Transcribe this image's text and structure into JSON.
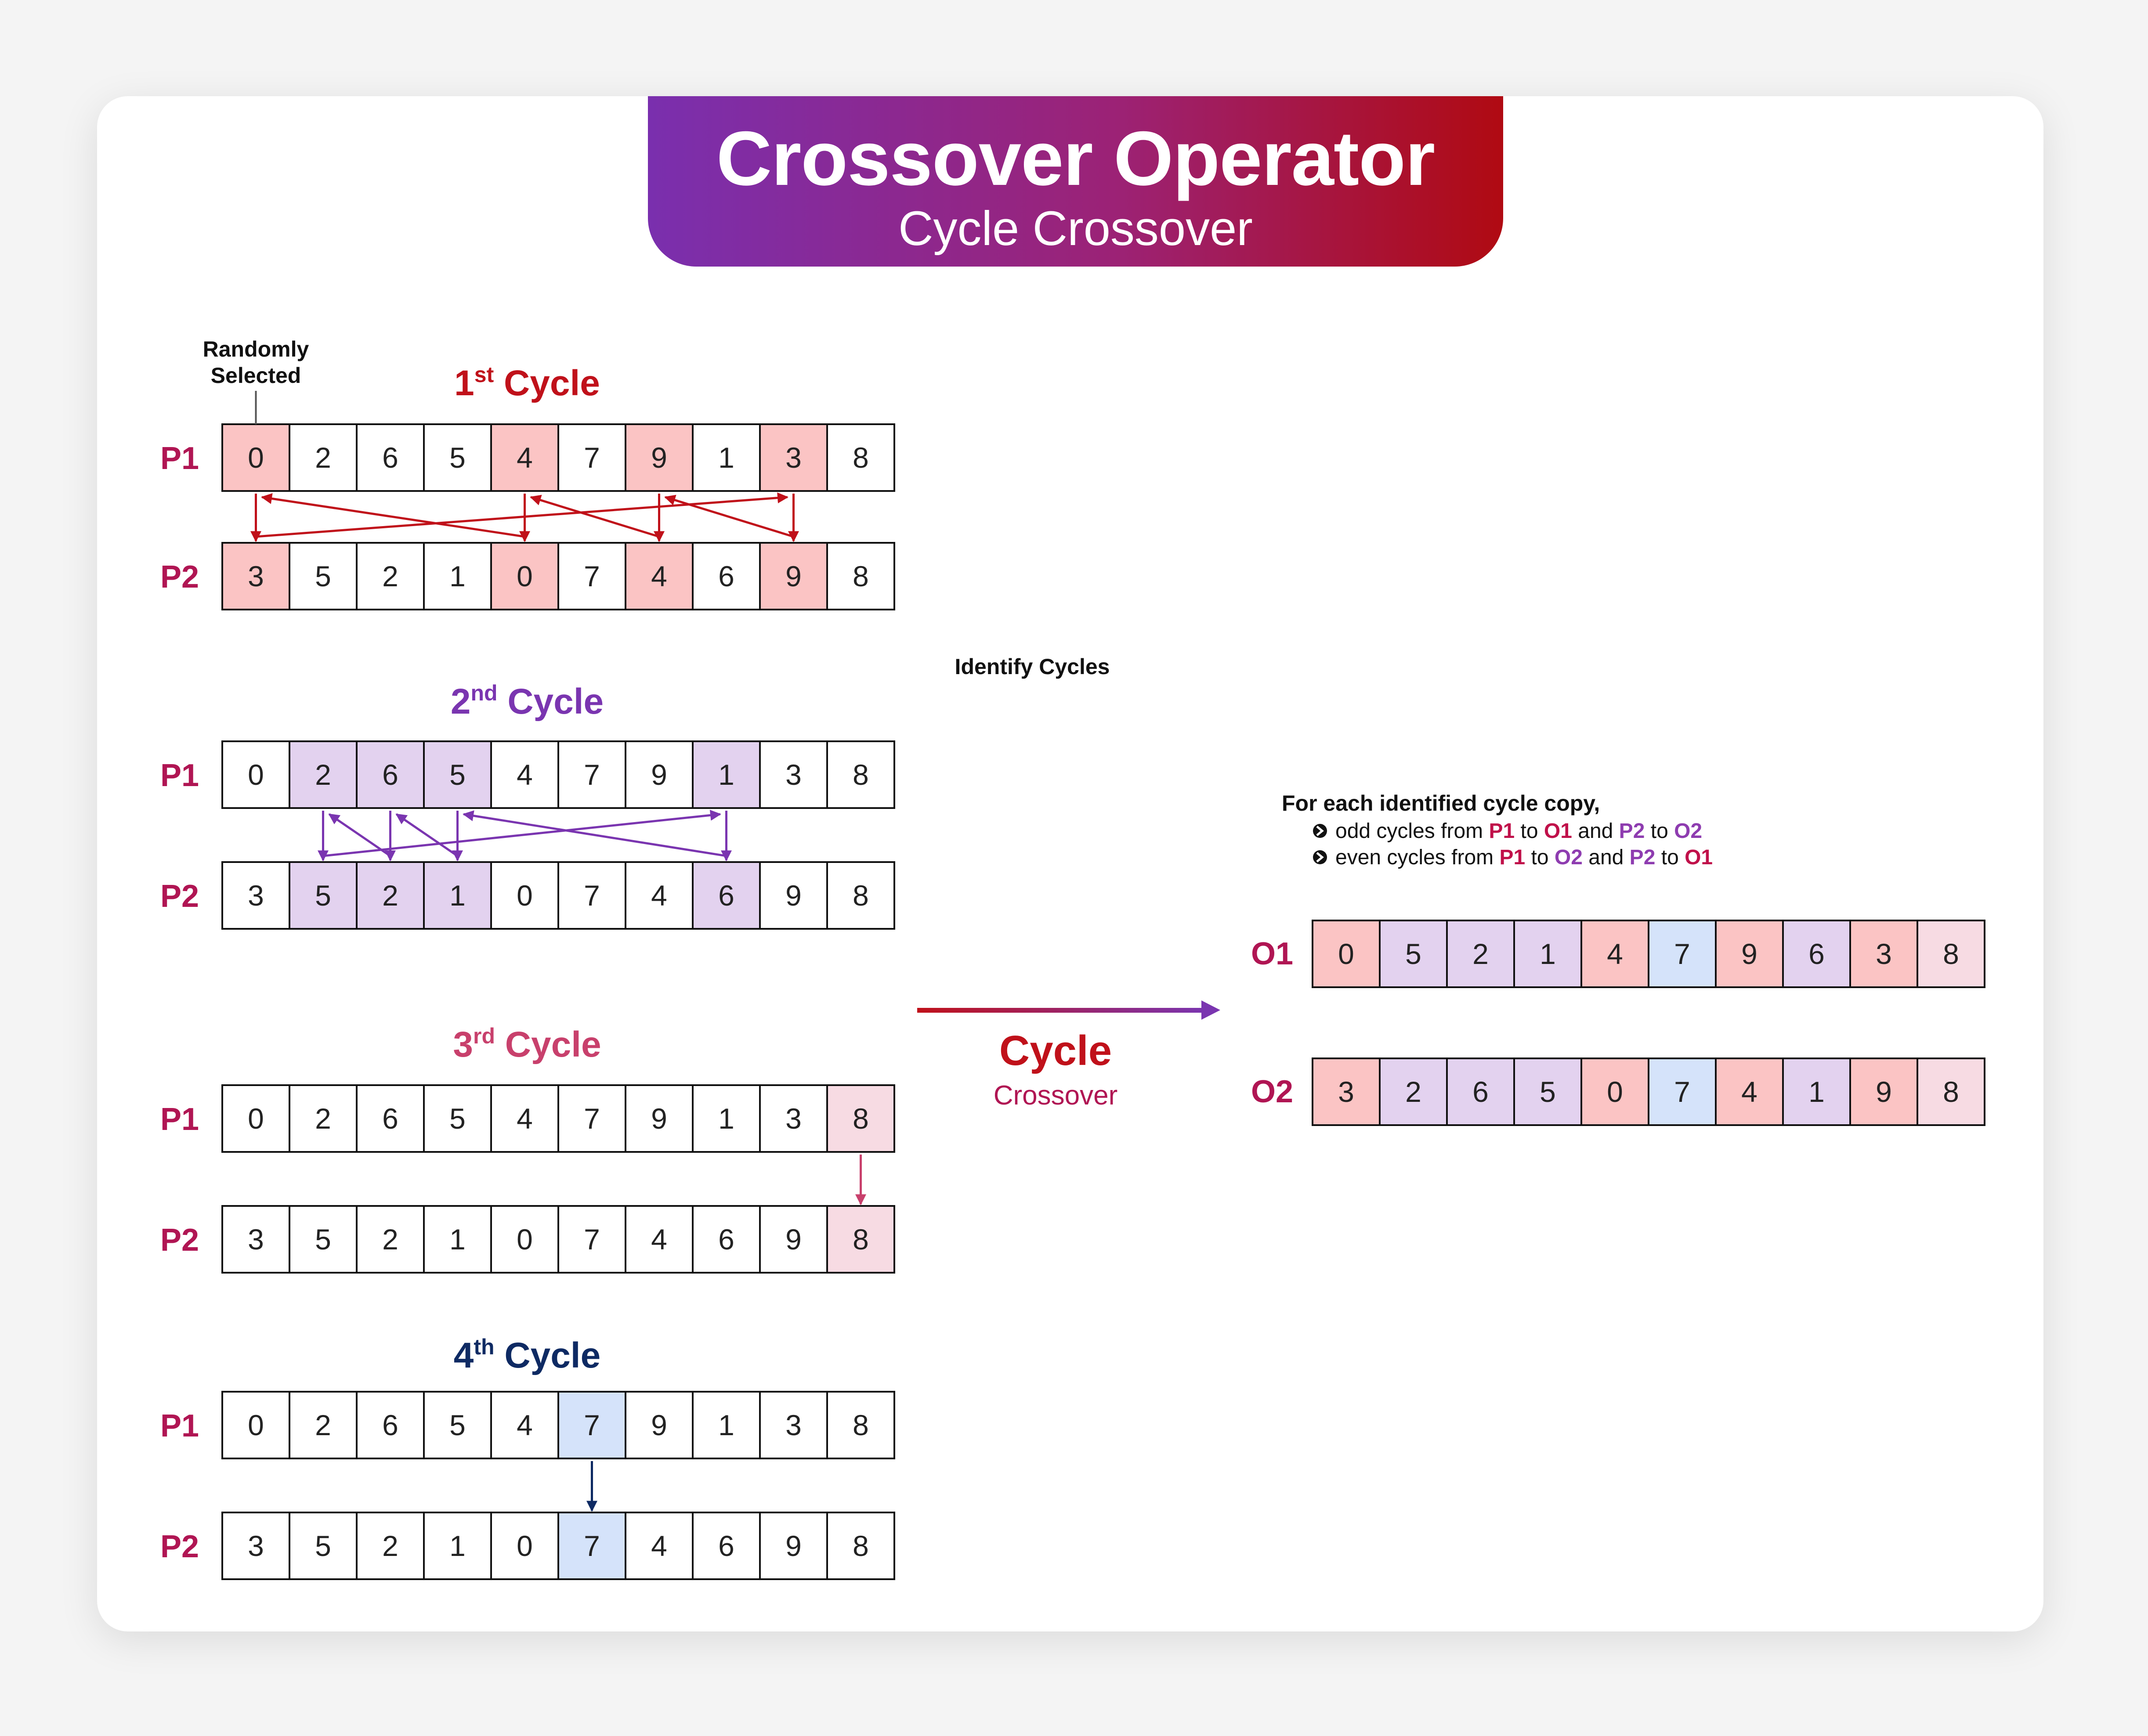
{
  "header": {
    "title": "Crossover Operator",
    "subtitle": "Cycle Crossover"
  },
  "annotation": {
    "line1": "Randomly",
    "line2": "Selected"
  },
  "colors": {
    "cycle1": "#fbc4c4",
    "cycle2": "#e3d2ef",
    "cycle3": "#f7dbe3",
    "cycle4": "#d5e3fa",
    "arrow1": "#c0111a",
    "arrow2": "#7a35b0",
    "arrow3": "#c8406c",
    "arrow4": "#0e2a63"
  },
  "cycles": [
    {
      "ordinal": "1",
      "suffix": "st",
      "word": "Cycle",
      "color": "#c0111a",
      "highlight": "cycle1",
      "arrow": "arrow1",
      "p1_label": "P1",
      "p2_label": "P2",
      "p1": [
        "0",
        "2",
        "6",
        "5",
        "4",
        "7",
        "9",
        "1",
        "3",
        "8"
      ],
      "p2": [
        "3",
        "5",
        "2",
        "1",
        "0",
        "7",
        "4",
        "6",
        "9",
        "8"
      ],
      "p1_hl": [
        0,
        4,
        6,
        8
      ],
      "p2_hl": [
        0,
        4,
        6,
        8
      ],
      "down": [
        [
          0,
          0
        ],
        [
          4,
          4
        ],
        [
          6,
          6
        ],
        [
          8,
          8
        ]
      ],
      "up": [
        [
          4,
          0
        ],
        [
          6,
          4
        ],
        [
          8,
          6
        ],
        [
          0,
          8
        ]
      ]
    },
    {
      "ordinal": "2",
      "suffix": "nd",
      "word": "Cycle",
      "color": "#7a35b0",
      "highlight": "cycle2",
      "arrow": "arrow2",
      "p1_label": "P1",
      "p2_label": "P2",
      "p1": [
        "0",
        "2",
        "6",
        "5",
        "4",
        "7",
        "9",
        "1",
        "3",
        "8"
      ],
      "p2": [
        "3",
        "5",
        "2",
        "1",
        "0",
        "7",
        "4",
        "6",
        "9",
        "8"
      ],
      "p1_hl": [
        1,
        2,
        3,
        7
      ],
      "p2_hl": [
        1,
        2,
        3,
        7
      ],
      "down": [
        [
          1,
          1
        ],
        [
          2,
          2
        ],
        [
          3,
          3
        ],
        [
          7,
          7
        ]
      ],
      "up": [
        [
          2,
          1
        ],
        [
          1,
          7
        ],
        [
          7,
          3
        ],
        [
          3,
          2
        ]
      ]
    },
    {
      "ordinal": "3",
      "suffix": "rd",
      "word": "Cycle",
      "color": "#c8406c",
      "highlight": "cycle3",
      "arrow": "arrow3",
      "p1_label": "P1",
      "p2_label": "P2",
      "p1": [
        "0",
        "2",
        "6",
        "5",
        "4",
        "7",
        "9",
        "1",
        "3",
        "8"
      ],
      "p2": [
        "3",
        "5",
        "2",
        "1",
        "0",
        "7",
        "4",
        "6",
        "9",
        "8"
      ],
      "p1_hl": [
        9
      ],
      "p2_hl": [
        9
      ],
      "down": [
        [
          9,
          9
        ]
      ],
      "up": []
    },
    {
      "ordinal": "4",
      "suffix": "th",
      "word": "Cycle",
      "color": "#0e2a63",
      "highlight": "cycle4",
      "arrow": "arrow4",
      "p1_label": "P1",
      "p2_label": "P2",
      "p1": [
        "0",
        "2",
        "6",
        "5",
        "4",
        "7",
        "9",
        "1",
        "3",
        "8"
      ],
      "p2": [
        "3",
        "5",
        "2",
        "1",
        "0",
        "7",
        "4",
        "6",
        "9",
        "8"
      ],
      "p1_hl": [
        5
      ],
      "p2_hl": [
        5
      ],
      "down": [
        [
          5,
          5
        ]
      ],
      "up": []
    }
  ],
  "identify_label": "Identify Cycles",
  "center_label": {
    "line1": "Cycle",
    "line2": "Crossover"
  },
  "rules": {
    "title": "For each identified cycle copy,",
    "odd": [
      "odd cycles from ",
      "P1",
      " to ",
      "O1",
      " and ",
      "P2",
      " to ",
      "O2"
    ],
    "even": [
      "even cycles from ",
      "P1",
      " to ",
      "O2",
      " and ",
      "P2",
      " to ",
      "O1"
    ]
  },
  "offspring": [
    {
      "label": "O1",
      "values": [
        "0",
        "5",
        "2",
        "1",
        "4",
        "7",
        "9",
        "6",
        "3",
        "8"
      ],
      "hl": [
        "cycle1",
        "cycle2",
        "cycle2",
        "cycle2",
        "cycle1",
        "cycle4",
        "cycle1",
        "cycle2",
        "cycle1",
        "cycle3"
      ]
    },
    {
      "label": "O2",
      "values": [
        "3",
        "2",
        "6",
        "5",
        "0",
        "7",
        "4",
        "1",
        "9",
        "8"
      ],
      "hl": [
        "cycle1",
        "cycle2",
        "cycle2",
        "cycle2",
        "cycle1",
        "cycle4",
        "cycle1",
        "cycle2",
        "cycle1",
        "cycle3"
      ]
    }
  ]
}
